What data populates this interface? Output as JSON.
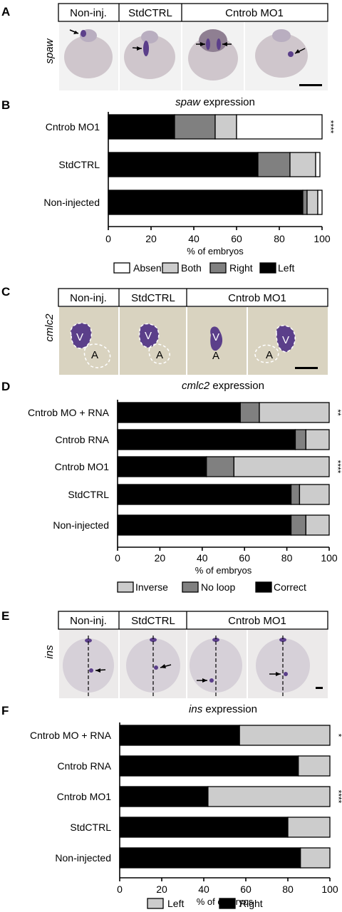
{
  "figure": {
    "panels": {
      "A": {
        "letter": "A",
        "gene": "spaw",
        "headers": [
          "Non-inj.",
          "StdCTRL",
          "Cntrob MO1"
        ]
      },
      "C": {
        "letter": "C",
        "gene": "cmlc2",
        "headers": [
          "Non-inj.",
          "StdCTRL",
          "Cntrob MO1"
        ],
        "region_labels": {
          "ventricle": "V",
          "atrium": "A"
        }
      },
      "E": {
        "letter": "E",
        "gene": "ins",
        "headers": [
          "Non-inj.",
          "StdCTRL",
          "Cntrob MO1"
        ]
      }
    },
    "colors": {
      "black": "#000000",
      "dark_gray": "#808080",
      "light_gray": "#cccccc",
      "white": "#ffffff",
      "embryo": "#c9c0c6",
      "stain": "#5b3f8a",
      "photo_bg_A": "#f2f2f2",
      "photo_bg_C": "#d9d3c0",
      "photo_bg_E": "#eceaea"
    }
  },
  "chart_data": [
    {
      "letter": "B",
      "type": "bar",
      "orientation": "horizontal",
      "stacked": true,
      "title_gene": "spaw",
      "title_rest": " expression",
      "xlabel": "% of embryos",
      "xlim": [
        0,
        100
      ],
      "ticks": [
        "0",
        "20",
        "40",
        "60",
        "80",
        "100"
      ],
      "categories": [
        "Cntrob MO1",
        "StdCTRL",
        "Non-injected"
      ],
      "series": [
        {
          "name": "Left",
          "color": "#000000",
          "values": [
            31,
            70,
            91
          ]
        },
        {
          "name": "Right",
          "color": "#808080",
          "values": [
            19,
            15,
            2
          ]
        },
        {
          "name": "Both",
          "color": "#cccccc",
          "values": [
            10,
            12,
            5
          ]
        },
        {
          "name": "Absent",
          "color": "#ffffff",
          "values": [
            40,
            2,
            2
          ]
        }
      ],
      "legend_order": [
        "Absent",
        "Both",
        "Right",
        "Left"
      ],
      "significance": [
        "****",
        "",
        ""
      ]
    },
    {
      "letter": "D",
      "type": "bar",
      "orientation": "horizontal",
      "stacked": true,
      "title_gene": "cmlc2",
      "title_rest": " expression",
      "xlabel": "% of embryos",
      "xlim": [
        0,
        100
      ],
      "ticks": [
        "0",
        "20",
        "40",
        "60",
        "80",
        "100"
      ],
      "categories": [
        "Cntrob MO + RNA",
        "Cntrob RNA",
        "Cntrob MO1",
        "StdCTRL",
        "Non-injected"
      ],
      "series": [
        {
          "name": "Correct",
          "color": "#000000",
          "values": [
            58,
            84,
            42,
            82,
            82
          ]
        },
        {
          "name": "No loop",
          "color": "#808080",
          "values": [
            9,
            5,
            13,
            4,
            7
          ]
        },
        {
          "name": "Inverse",
          "color": "#cccccc",
          "values": [
            33,
            11,
            45,
            14,
            11
          ]
        }
      ],
      "legend_order": [
        "Inverse",
        "No loop",
        "Correct"
      ],
      "significance": [
        "**",
        "",
        "****",
        "",
        ""
      ]
    },
    {
      "letter": "F",
      "type": "bar",
      "orientation": "horizontal",
      "stacked": true,
      "title_gene": "ins",
      "title_rest": " expression",
      "xlabel": "% of embryos",
      "xlim": [
        0,
        100
      ],
      "ticks": [
        "0",
        "20",
        "40",
        "60",
        "80",
        "100"
      ],
      "categories": [
        "Cntrob MO + RNA",
        "Cntrob RNA",
        "Cntrob MO1",
        "StdCTRL",
        "Non-injected"
      ],
      "series": [
        {
          "name": "Right",
          "color": "#000000",
          "values": [
            57,
            85,
            42,
            80,
            86
          ]
        },
        {
          "name": "Left",
          "color": "#cccccc",
          "values": [
            43,
            15,
            58,
            20,
            14
          ]
        }
      ],
      "legend_order": [
        "Left",
        "Right"
      ],
      "significance": [
        "*",
        "",
        "****",
        "",
        ""
      ]
    }
  ]
}
